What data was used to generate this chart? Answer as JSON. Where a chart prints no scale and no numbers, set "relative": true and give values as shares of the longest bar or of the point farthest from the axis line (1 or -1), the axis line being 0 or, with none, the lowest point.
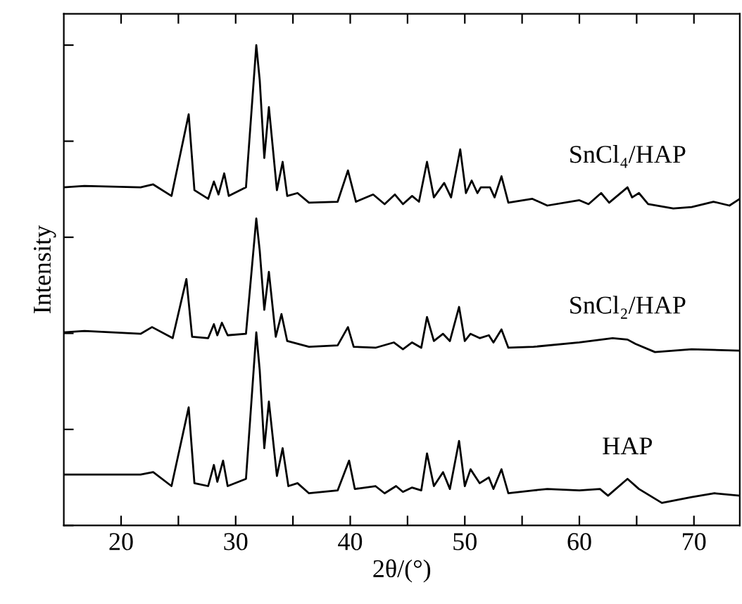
{
  "chart_data": {
    "type": "line",
    "relative": true,
    "xlabel": "2θ/(°)",
    "ylabel": "Intensity",
    "xlim": [
      15,
      74
    ],
    "xticks": [
      20,
      {
        "value": 25,
        "label": null
      },
      30,
      {
        "value": 35,
        "label": null
      },
      40,
      {
        "value": 45,
        "label": null
      },
      50,
      {
        "value": 55,
        "label": null
      },
      60,
      {
        "value": 65,
        "label": null
      },
      70
    ],
    "tick_labels": "x",
    "grid": false,
    "legend": false,
    "marker": "none",
    "line_style": "solid",
    "series": [
      {
        "name": "SnCl₄/HAP",
        "color": "#000000",
        "x": [
          15,
          16.8,
          21.7,
          22.8,
          24.4,
          25.9,
          26.4,
          27.6,
          28.1,
          28.5,
          29.0,
          29.4,
          30.9,
          31.8,
          32.1,
          32.5,
          32.9,
          33.6,
          34.1,
          34.5,
          35.4,
          36.4,
          38.9,
          39.8,
          40.5,
          42.0,
          43.0,
          43.9,
          44.6,
          45.4,
          46.0,
          46.7,
          47.3,
          48.2,
          48.8,
          49.6,
          50.1,
          50.6,
          51.1,
          51.4,
          52.2,
          52.6,
          53.2,
          53.8,
          55.9,
          57.2,
          60.0,
          60.8,
          61.9,
          62.6,
          64.2,
          64.6,
          65.2,
          66.0,
          68.2,
          69.8,
          71.7,
          73.1,
          74
        ],
        "values": [
          0.704,
          0.707,
          0.704,
          0.71,
          0.686,
          0.856,
          0.698,
          0.68,
          0.716,
          0.689,
          0.733,
          0.686,
          0.704,
          1.0,
          0.927,
          0.765,
          0.871,
          0.698,
          0.757,
          0.686,
          0.692,
          0.672,
          0.674,
          0.739,
          0.674,
          0.689,
          0.669,
          0.689,
          0.669,
          0.686,
          0.674,
          0.757,
          0.683,
          0.713,
          0.683,
          0.783,
          0.692,
          0.718,
          0.692,
          0.704,
          0.704,
          0.683,
          0.727,
          0.672,
          0.68,
          0.666,
          0.677,
          0.669,
          0.692,
          0.672,
          0.704,
          0.683,
          0.692,
          0.669,
          0.66,
          0.663,
          0.674,
          0.666,
          0.68
        ]
      },
      {
        "name": "SnCl₂/HAP",
        "color": "#000000",
        "x": [
          15,
          16.8,
          21.7,
          22.7,
          24.5,
          25.7,
          26.2,
          27.6,
          28.1,
          28.4,
          28.8,
          29.3,
          30.9,
          31.8,
          32.1,
          32.5,
          32.9,
          33.5,
          34.0,
          34.5,
          36.4,
          38.9,
          39.8,
          40.3,
          42.2,
          43.8,
          44.6,
          45.4,
          46.2,
          46.7,
          47.3,
          48.1,
          48.7,
          49.5,
          50.0,
          50.5,
          51.3,
          52.1,
          52.5,
          53.2,
          53.8,
          56.0,
          60.0,
          62.9,
          64.2,
          64.9,
          66.6,
          69.8,
          74
        ],
        "values": [
          0.402,
          0.405,
          0.399,
          0.413,
          0.39,
          0.513,
          0.393,
          0.39,
          0.419,
          0.396,
          0.422,
          0.396,
          0.399,
          0.639,
          0.572,
          0.449,
          0.528,
          0.393,
          0.44,
          0.384,
          0.372,
          0.375,
          0.413,
          0.372,
          0.37,
          0.381,
          0.367,
          0.381,
          0.37,
          0.434,
          0.384,
          0.399,
          0.384,
          0.455,
          0.384,
          0.399,
          0.39,
          0.396,
          0.381,
          0.408,
          0.37,
          0.372,
          0.381,
          0.39,
          0.387,
          0.378,
          0.361,
          0.367,
          0.364
        ]
      },
      {
        "name": "HAP",
        "color": "#000000",
        "x": [
          15,
          16.8,
          21.7,
          22.8,
          24.4,
          25.9,
          26.4,
          27.6,
          28.1,
          28.4,
          28.9,
          29.3,
          30.9,
          31.8,
          32.1,
          32.5,
          32.9,
          33.6,
          34.1,
          34.6,
          35.4,
          36.4,
          38.9,
          39.9,
          40.4,
          42.2,
          43.0,
          44.0,
          44.6,
          45.4,
          46.2,
          46.7,
          47.3,
          48.1,
          48.7,
          49.5,
          50.0,
          50.5,
          51.3,
          52.1,
          52.5,
          53.2,
          53.8,
          56.0,
          57.2,
          60.0,
          61.8,
          62.5,
          64.2,
          65.2,
          67.2,
          69.8,
          71.8,
          74
        ],
        "values": [
          0.106,
          0.106,
          0.106,
          0.111,
          0.082,
          0.246,
          0.088,
          0.082,
          0.126,
          0.091,
          0.135,
          0.082,
          0.097,
          0.402,
          0.323,
          0.161,
          0.258,
          0.103,
          0.161,
          0.082,
          0.088,
          0.067,
          0.073,
          0.135,
          0.076,
          0.082,
          0.067,
          0.082,
          0.07,
          0.079,
          0.073,
          0.15,
          0.082,
          0.111,
          0.076,
          0.176,
          0.082,
          0.117,
          0.088,
          0.1,
          0.076,
          0.117,
          0.067,
          0.073,
          0.076,
          0.073,
          0.076,
          0.062,
          0.097,
          0.076,
          0.047,
          0.059,
          0.067,
          0.062
        ]
      }
    ]
  }
}
